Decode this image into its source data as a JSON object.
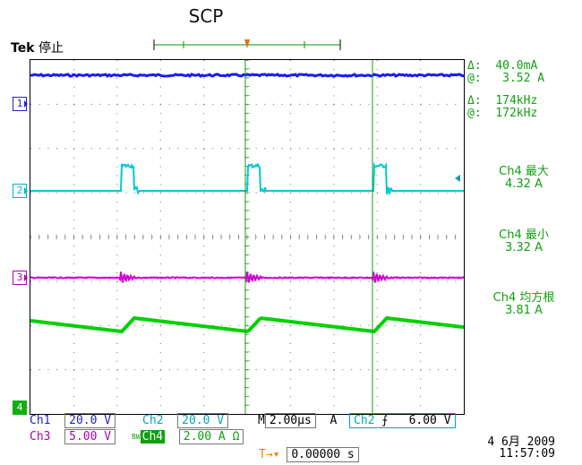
{
  "title": "SCP",
  "status": {
    "brand": "Tek",
    "state": "停止"
  },
  "cursor_readout": {
    "delta_1_label": "Δ:",
    "delta_1_value": "40.0mA",
    "at_1_label": "@:",
    "at_1_value": "3.52 A",
    "delta_2_label": "Δ:",
    "delta_2_value": "174kHz",
    "at_2_label": "@:",
    "at_2_value": "172kHz"
  },
  "measurements": [
    {
      "label": "Ch4 最大",
      "value": "4.32 A"
    },
    {
      "label": "Ch4 最小",
      "value": "3.32 A"
    },
    {
      "label": "Ch4 均方根",
      "value": "3.81 A"
    }
  ],
  "channel_markers": {
    "ch1": "1",
    "ch2": "2",
    "ch3": "3",
    "ch4": "4"
  },
  "channels": {
    "ch1_label": "Ch1",
    "ch1_scale": "20.0 V",
    "ch2_label": "Ch2",
    "ch2_scale": "20.0 V",
    "ch3_label": "Ch3",
    "ch3_scale": "5.00 V",
    "ch4_label": "Ch4",
    "ch4_scale": "2.00 A Ω",
    "bw_label": "BW"
  },
  "timebase": {
    "label": "M",
    "value": "2.00µs",
    "acq": "A"
  },
  "trigger": {
    "source": "Ch2",
    "slope": "⨍",
    "level": "6.00 V",
    "marker": "T"
  },
  "horizontal_position": {
    "value": "0.00000 s",
    "icon": "T→▾"
  },
  "datetime": {
    "date": "4 6月 2009",
    "time": "11:57:09"
  },
  "colors": {
    "ch1": "#1a1aff",
    "ch2": "#00c8d8",
    "ch3": "#d000d0",
    "ch4": "#00d000",
    "cursor": "#10a010"
  }
}
